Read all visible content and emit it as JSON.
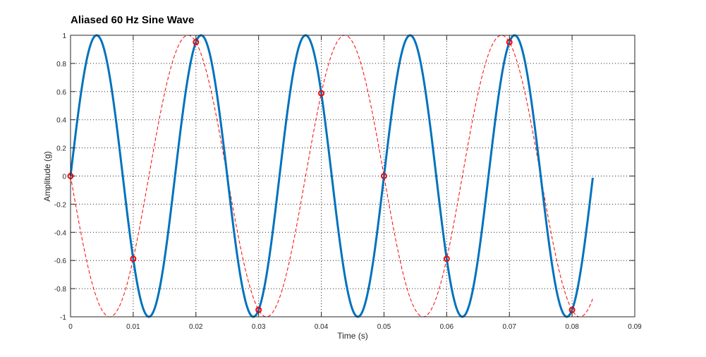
{
  "chart_data": {
    "type": "line",
    "title": "Aliased 60 Hz Sine Wave",
    "xlabel": "Time (s)",
    "ylabel": "Amplitude (g)",
    "xlim": [
      0,
      0.09
    ],
    "ylim": [
      -1,
      1
    ],
    "xticks": [
      "0",
      "0.01",
      "0.02",
      "0.03",
      "0.04",
      "0.05",
      "0.06",
      "0.07",
      "0.08",
      "0.09"
    ],
    "yticks": [
      "-1",
      "-0.8",
      "-0.6",
      "-0.4",
      "-0.2",
      "0",
      "0.2",
      "0.4",
      "0.6",
      "0.8",
      "1"
    ],
    "grid": true,
    "series": [
      {
        "style": "solid",
        "color": "#0072bd",
        "function": "sin",
        "frequency_hz": 60,
        "amplitude": 1,
        "t_range": [
          0,
          0.0833
        ]
      },
      {
        "style": "dashed",
        "color": "#ff0000",
        "function": "sin",
        "frequency_hz": -40,
        "amplitude": 1,
        "t_range": [
          0,
          0.0833
        ]
      }
    ],
    "samples": {
      "color": "#ff0000",
      "marker": "circle",
      "x": [
        0,
        0.01,
        0.02,
        0.03,
        0.04,
        0.05,
        0.06,
        0.07,
        0.08
      ],
      "y": [
        0,
        -0.588,
        0.951,
        -0.951,
        0.588,
        0,
        -0.588,
        0.951,
        -0.951
      ]
    }
  }
}
